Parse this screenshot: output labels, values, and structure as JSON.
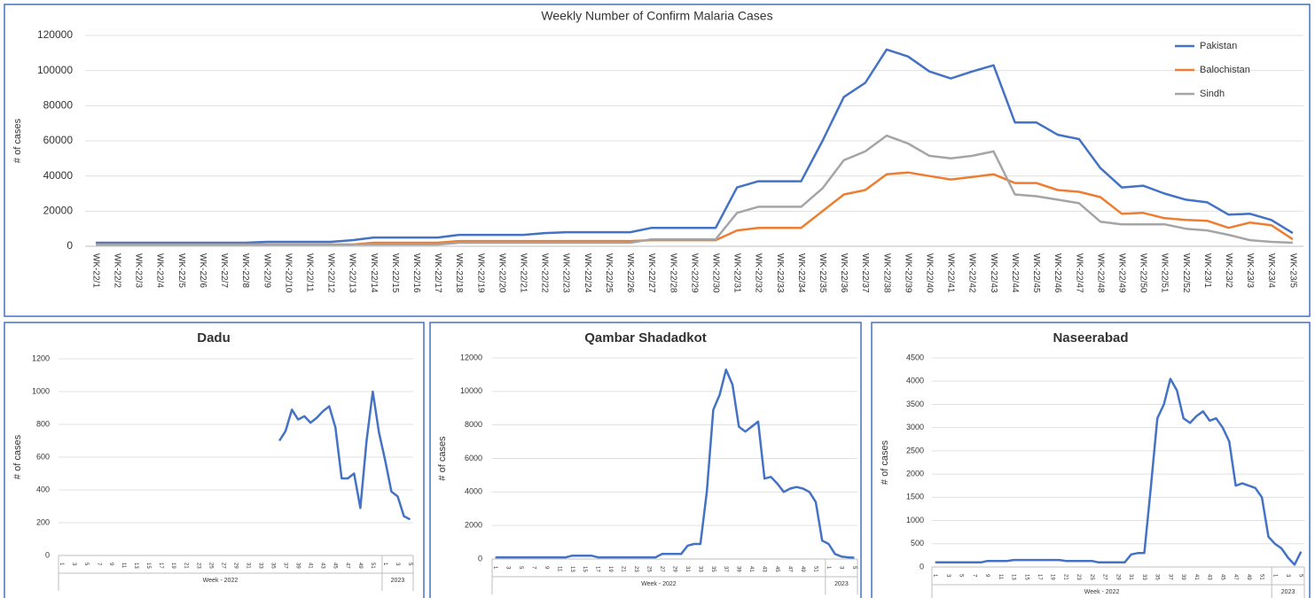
{
  "chart_data": [
    {
      "type": "line",
      "title": "Weekly Number of Confirm Malaria Cases",
      "ylabel": "# of cases",
      "categories": [
        "WK-22/1",
        "WK-22/2",
        "WK-22/3",
        "WK-22/4",
        "WK-22/5",
        "WK-22/6",
        "WK-22/7",
        "WK-22/8",
        "WK-22/9",
        "WK-22/10",
        "WK-22/11",
        "WK-22/12",
        "WK-22/13",
        "WK-22/14",
        "WK-22/15",
        "WK-22/16",
        "WK-22/17",
        "WK-22/18",
        "WK-22/19",
        "WK-22/20",
        "WK-22/21",
        "WK-22/22",
        "WK-22/23",
        "WK-22/24",
        "WK-22/25",
        "WK-22/26",
        "WK-22/27",
        "WK-22/28",
        "WK-22/29",
        "WK-22/30",
        "WK-22/31",
        "WK-22/32",
        "WK-22/33",
        "WK-22/34",
        "WK-22/35",
        "WK-22/36",
        "WK-22/37",
        "WK-22/38",
        "WK-22/39",
        "WK-22/40",
        "WK-22/41",
        "WK-22/42",
        "WK-22/43",
        "WK-22/44",
        "WK-22/45",
        "WK-22/46",
        "WK-22/47",
        "WK-22/48",
        "WK-22/49",
        "WK-22/50",
        "WK-22/51",
        "WK-22/52",
        "WK-23/1",
        "WK-23/2",
        "WK-23/3",
        "WK-23/4",
        "WK-23/5"
      ],
      "series": [
        {
          "name": "Pakistan",
          "color": "#4472c4",
          "values": [
            2000,
            2000,
            2000,
            2000,
            2000,
            2000,
            2000,
            2000,
            2500,
            2500,
            2500,
            2500,
            3500,
            5000,
            5000,
            5000,
            5000,
            6500,
            6500,
            6500,
            6500,
            7500,
            8000,
            8000,
            8000,
            8000,
            10500,
            10500,
            10500,
            10500,
            33500,
            37000,
            37000,
            37000,
            60000,
            85000,
            93000,
            112000,
            108000,
            99500,
            95500,
            99500,
            103000,
            70500,
            70500,
            63500,
            61000,
            44500,
            33500,
            34500,
            30000,
            26500,
            25000,
            18000,
            18500,
            15000,
            7500
          ]
        },
        {
          "name": "Balochistan",
          "color": "#ed7d31",
          "values": [
            1000,
            1000,
            1000,
            1000,
            1000,
            1000,
            1000,
            1000,
            1000,
            1000,
            1000,
            1000,
            1000,
            2000,
            2000,
            2000,
            2000,
            3000,
            3000,
            3000,
            3000,
            3000,
            3000,
            3000,
            3000,
            3000,
            3500,
            3500,
            3500,
            3500,
            9000,
            10500,
            10500,
            10500,
            20000,
            29500,
            32000,
            41000,
            42000,
            40000,
            38000,
            39500,
            41000,
            36000,
            36000,
            32000,
            31000,
            28000,
            18500,
            19000,
            16000,
            15000,
            14500,
            10500,
            13500,
            12000,
            4000
          ]
        },
        {
          "name": "Sindh",
          "color": "#a5a5a5",
          "values": [
            1000,
            1000,
            1000,
            1000,
            1000,
            1000,
            1000,
            1000,
            1000,
            1000,
            1000,
            1000,
            1000,
            1000,
            1000,
            1000,
            1000,
            2000,
            2000,
            2000,
            2000,
            2000,
            2000,
            2000,
            2000,
            2000,
            4000,
            4000,
            4000,
            4000,
            19000,
            22500,
            22500,
            22500,
            33000,
            49000,
            54000,
            63000,
            58500,
            51500,
            50000,
            51500,
            54000,
            29500,
            28500,
            26500,
            24500,
            14000,
            12500,
            12500,
            12500,
            10000,
            9000,
            6500,
            3500,
            2500,
            2000
          ]
        }
      ],
      "ylim": [
        0,
        120000
      ],
      "yticks": [
        0,
        20000,
        40000,
        60000,
        80000,
        100000,
        120000
      ],
      "grid": true,
      "legend": "top-right"
    },
    {
      "type": "line",
      "title": "Dadu",
      "ylabel": "# of cases",
      "categories": [
        "1",
        null,
        "3",
        null,
        "5",
        null,
        "7",
        null,
        "9",
        null,
        "11",
        null,
        "13",
        null,
        "15",
        null,
        "17",
        null,
        "19",
        null,
        "21",
        null,
        "23",
        null,
        "25",
        null,
        "27",
        null,
        "29",
        null,
        "31",
        null,
        "33",
        null,
        "35",
        null,
        "37",
        null,
        "39",
        null,
        "41",
        null,
        "43",
        null,
        "45",
        null,
        "47",
        null,
        "49",
        null,
        "51",
        null,
        "1",
        null,
        "3",
        null,
        "5"
      ],
      "x_groups": [
        "Week - 2022",
        "2023"
      ],
      "series": [
        {
          "color": "#4472c4",
          "values": [
            null,
            null,
            null,
            null,
            null,
            null,
            null,
            null,
            null,
            null,
            null,
            null,
            null,
            null,
            null,
            null,
            null,
            null,
            null,
            null,
            null,
            null,
            null,
            null,
            null,
            null,
            null,
            null,
            null,
            null,
            null,
            null,
            null,
            null,
            null,
            700,
            760,
            890,
            830,
            850,
            810,
            840,
            880,
            910,
            780,
            470,
            470,
            500,
            290,
            700,
            1000,
            750,
            580,
            390,
            360,
            240,
            220
          ]
        }
      ],
      "ylim": [
        0,
        1200
      ],
      "yticks": [
        0,
        200,
        400,
        600,
        800,
        1000,
        1200
      ],
      "grid": true
    },
    {
      "type": "line",
      "title": "Qambar Shadadkot",
      "ylabel": "# of cases",
      "categories": [
        "1",
        null,
        "3",
        null,
        "5",
        null,
        "7",
        null,
        "9",
        null,
        "11",
        null,
        "13",
        null,
        "15",
        null,
        "17",
        null,
        "19",
        null,
        "21",
        null,
        "23",
        null,
        "25",
        null,
        "27",
        null,
        "29",
        null,
        "31",
        null,
        "33",
        null,
        "35",
        null,
        "37",
        null,
        "39",
        null,
        "41",
        null,
        "43",
        null,
        "45",
        null,
        "47",
        null,
        "49",
        null,
        "51",
        null,
        "1",
        null,
        "3",
        null,
        "5"
      ],
      "x_groups": [
        "Week - 2022",
        "2023"
      ],
      "series": [
        {
          "color": "#4472c4",
          "values": [
            100,
            100,
            100,
            100,
            100,
            100,
            100,
            100,
            100,
            100,
            100,
            100,
            200,
            200,
            200,
            200,
            100,
            100,
            100,
            100,
            100,
            100,
            100,
            100,
            100,
            100,
            300,
            300,
            300,
            300,
            800,
            900,
            900,
            4000,
            8900,
            9800,
            11300,
            10400,
            7900,
            7600,
            7900,
            8200,
            4800,
            4900,
            4500,
            4000,
            4200,
            4300,
            4200,
            4000,
            3400,
            1100,
            900,
            300,
            150,
            100,
            80
          ]
        }
      ],
      "ylim": [
        0,
        12000
      ],
      "yticks": [
        0,
        2000,
        4000,
        6000,
        8000,
        10000,
        12000
      ],
      "grid": true
    },
    {
      "type": "line",
      "title": "Naseerabad",
      "ylabel": "# of cases",
      "categories": [
        "1",
        null,
        "3",
        null,
        "5",
        null,
        "7",
        null,
        "9",
        null,
        "11",
        null,
        "13",
        null,
        "15",
        null,
        "17",
        null,
        "19",
        null,
        "21",
        null,
        "23",
        null,
        "25",
        null,
        "27",
        null,
        "29",
        null,
        "31",
        null,
        "33",
        null,
        "35",
        null,
        "37",
        null,
        "39",
        null,
        "41",
        null,
        "43",
        null,
        "45",
        null,
        "47",
        null,
        "49",
        null,
        "51",
        null,
        "1",
        null,
        "3",
        null,
        "5"
      ],
      "x_groups": [
        "Week - 2022",
        "2023"
      ],
      "series": [
        {
          "color": "#4472c4",
          "values": [
            100,
            100,
            100,
            100,
            100,
            100,
            100,
            100,
            130,
            130,
            130,
            130,
            150,
            150,
            150,
            150,
            150,
            150,
            150,
            150,
            130,
            130,
            130,
            130,
            130,
            100,
            100,
            100,
            100,
            100,
            270,
            300,
            300,
            1700,
            3200,
            3500,
            4050,
            3800,
            3200,
            3100,
            3250,
            3350,
            3150,
            3200,
            3000,
            2700,
            1750,
            1800,
            1750,
            1700,
            1500,
            650,
            500,
            400,
            200,
            50,
            330
          ]
        }
      ],
      "ylim": [
        0,
        4500
      ],
      "yticks": [
        0,
        500,
        1000,
        1500,
        2000,
        2500,
        3000,
        3500,
        4000,
        4500
      ],
      "grid": true
    }
  ]
}
